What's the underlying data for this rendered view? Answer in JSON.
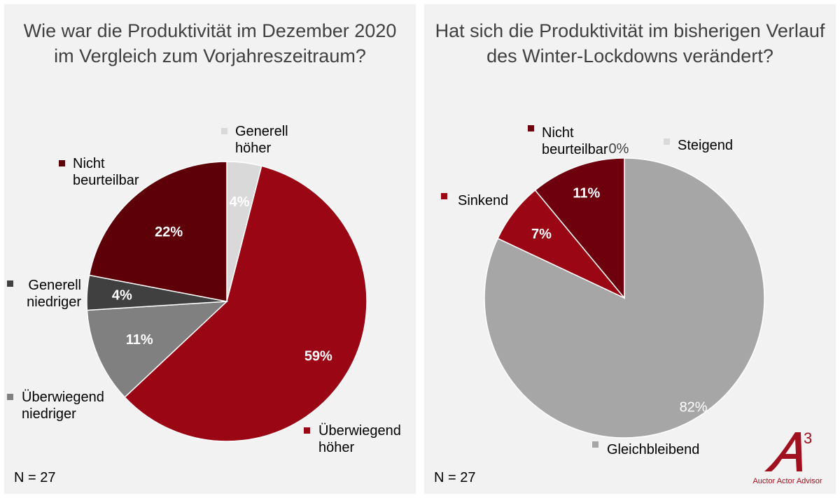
{
  "chart_data": [
    {
      "type": "pie",
      "title": "Wie war die Produktivität im Dezember 2020 im Vergleich zum Vorjahreszeitraum?",
      "n_label": "N = 27",
      "legend_placement": "outside-labels",
      "slices": [
        {
          "name": "Generell höher",
          "label_lines": [
            "Generell",
            "höher"
          ],
          "value": 4,
          "value_label": "4%",
          "color": "#d9d9d9",
          "pct_color": "#ffffff"
        },
        {
          "name": "Überwiegend höher",
          "label_lines": [
            "Überwiegend",
            "höher"
          ],
          "value": 59,
          "value_label": "59%",
          "color": "#9b0614",
          "pct_color": "#ffffff"
        },
        {
          "name": "Überwiegend niedriger",
          "label_lines": [
            "Überwiegend",
            "niedriger"
          ],
          "value": 11,
          "value_label": "11%",
          "color": "#808080",
          "pct_color": "#ffffff"
        },
        {
          "name": "Generell niedriger",
          "label_lines": [
            "Generell",
            "niedriger"
          ],
          "value": 4,
          "value_label": "4%",
          "color": "#404040",
          "pct_color": "#ffffff"
        },
        {
          "name": "Nicht beurteilbar",
          "label_lines": [
            "Nicht",
            "beurteilbar"
          ],
          "value": 22,
          "value_label": "22%",
          "color": "#5e0008",
          "pct_color": "#ffffff"
        }
      ]
    },
    {
      "type": "pie",
      "title": "Hat sich die Produktivität im bisherigen Verlauf des Winter-Lockdowns verändert?",
      "n_label": "N = 27",
      "legend_placement": "outside-labels",
      "slices": [
        {
          "name": "Steigend",
          "label_lines": [
            "Steigend"
          ],
          "value": 0,
          "value_label": "0%",
          "color": "#d9d9d9",
          "pct_color": "#404040"
        },
        {
          "name": "Gleichbleibend",
          "label_lines": [
            "Gleichbleibend"
          ],
          "value": 82,
          "value_label": "82%",
          "color": "#a6a6a6",
          "pct_color": "#ffffff"
        },
        {
          "name": "Sinkend",
          "label_lines": [
            "Sinkend"
          ],
          "value": 7,
          "value_label": "7%",
          "color": "#9b0614",
          "pct_color": "#ffffff"
        },
        {
          "name": "Nicht beurteilbar",
          "label_lines": [
            "Nicht",
            "beurteilbar"
          ],
          "value": 11,
          "value_label": "11%",
          "color": "#6e000d",
          "pct_color": "#ffffff"
        }
      ]
    }
  ],
  "logo": {
    "mark": "A",
    "superscript": "3",
    "tagline": "Auctor Actor Advisor",
    "color": "#a0101e"
  }
}
